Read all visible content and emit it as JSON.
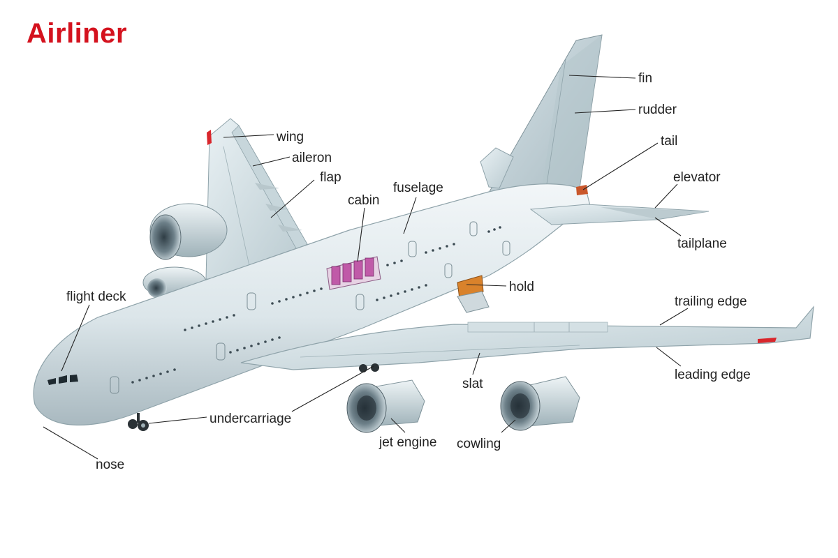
{
  "title": "Airliner",
  "labels": {
    "fin": "fin",
    "rudder": "rudder",
    "tail": "tail",
    "elevator": "elevator",
    "tailplane": "tailplane",
    "wing": "wing",
    "aileron": "aileron",
    "flap": "flap",
    "fuselage": "fuselage",
    "cabin": "cabin",
    "hold": "hold",
    "trailing_edge": "trailing edge",
    "leading_edge": "leading edge",
    "flight_deck": "flight deck",
    "slat": "slat",
    "undercarriage": "undercarriage",
    "jet_engine": "jet engine",
    "cowling": "cowling",
    "nose": "nose"
  },
  "colors": {
    "title": "#d4121e",
    "body": "#dfe8ec",
    "cabin_seats": "#c05aa8",
    "hold_cargo": "#d9822b",
    "wingtip_marker": "#d9262c"
  }
}
